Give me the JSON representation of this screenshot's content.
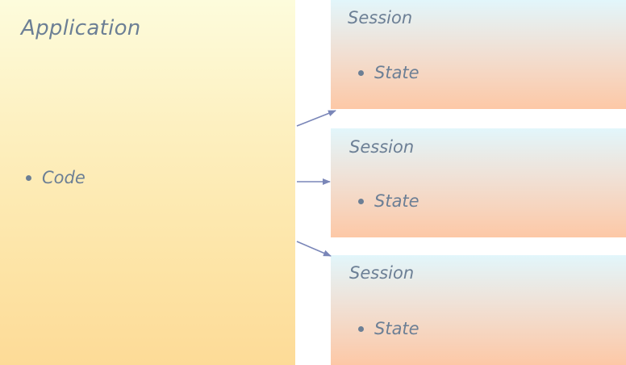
{
  "application": {
    "title": "Application",
    "items": [
      "Code"
    ]
  },
  "sessions": [
    {
      "title": "Session",
      "items": [
        "State"
      ]
    },
    {
      "title": "Session",
      "items": [
        "State"
      ]
    },
    {
      "title": "Session",
      "items": [
        "State"
      ]
    }
  ],
  "colors": {
    "text": "#6c7f95",
    "arrow": "#7a86b8",
    "application_fill_top": "#fdfcdc",
    "application_fill_bottom": "#fddb97",
    "session_fill_top": "#e2f6fb",
    "session_fill_bottom": "#fdc8a6"
  }
}
